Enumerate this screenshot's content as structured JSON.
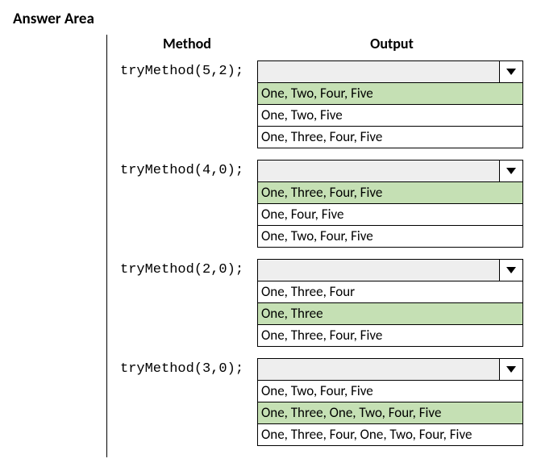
{
  "title": "Answer Area",
  "headers": {
    "method": "Method",
    "output": "Output"
  },
  "highlight_color": "#c5e0b4",
  "groups": [
    {
      "method": "tryMethod(5,2);",
      "highlight_index": 0,
      "options": [
        "One, Two, Four, Five",
        "One, Two, Five",
        "One, Three, Four, Five"
      ]
    },
    {
      "method": "tryMethod(4,0);",
      "highlight_index": 0,
      "options": [
        "One, Three, Four, Five",
        "One, Four, Five",
        "One, Two, Four, Five"
      ]
    },
    {
      "method": "tryMethod(2,0);",
      "highlight_index": 1,
      "options": [
        "One, Three, Four",
        "One, Three",
        "One, Three, Four, Five"
      ]
    },
    {
      "method": "tryMethod(3,0);",
      "highlight_index": 1,
      "options": [
        "One, Two, Four, Five",
        "One, Three, One, Two, Four, Five",
        "One, Three, Four, One, Two, Four, Five"
      ]
    }
  ]
}
